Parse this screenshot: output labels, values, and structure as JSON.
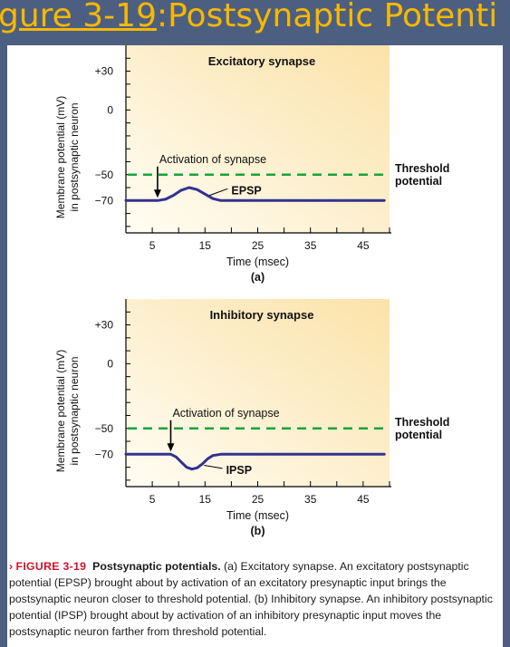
{
  "slide": {
    "title_link": "gure 3-19",
    "title_rest": ":Postsynaptic Potenti"
  },
  "chart_data": [
    {
      "type": "line",
      "title": "Excitatory synapse",
      "panel_label": "(a)",
      "xlabel": "Time (msec)",
      "ylabel_line1": "Membrane potential (mV)",
      "ylabel_line2": "in postsynaptic neuron",
      "x_ticks": [
        "5",
        "15",
        "25",
        "35",
        "45"
      ],
      "y_ticks": [
        "+30",
        "0",
        "−50",
        "−70"
      ],
      "y_tick_values": [
        30,
        0,
        -50,
        -70
      ],
      "xlim": [
        0,
        50
      ],
      "ylim": [
        -95,
        50
      ],
      "threshold": -50,
      "threshold_label_line1": "Threshold",
      "threshold_label_line2": "potential",
      "annotation_activation": "Activation of synapse",
      "activation_x": 6,
      "potential_label": "EPSP",
      "series": [
        {
          "x": [
            0,
            6,
            7.5,
            9,
            10.5,
            12,
            13.5,
            15,
            16.5,
            18,
            20,
            25,
            30,
            35,
            40,
            45,
            49
          ],
          "y": [
            -70,
            -70,
            -69,
            -66,
            -62,
            -60,
            -61.5,
            -65,
            -68.5,
            -70,
            -70,
            -70,
            -70,
            -70,
            -70,
            -70,
            -70
          ]
        }
      ],
      "grid": false
    },
    {
      "type": "line",
      "title": "Inhibitory synapse",
      "panel_label": "(b)",
      "xlabel": "Time (msec)",
      "ylabel_line1": "Membrane potential (mV)",
      "ylabel_line2": "in postsynaptic neuron",
      "x_ticks": [
        "5",
        "15",
        "25",
        "35",
        "45"
      ],
      "y_ticks": [
        "+30",
        "0",
        "−50",
        "−70"
      ],
      "y_tick_values": [
        30,
        0,
        -50,
        -70
      ],
      "xlim": [
        0,
        50
      ],
      "ylim": [
        -95,
        50
      ],
      "threshold": -50,
      "threshold_label_line1": "Threshold",
      "threshold_label_line2": "potential",
      "annotation_activation": "Activation of synapse",
      "activation_x": 8.5,
      "potential_label": "IPSP",
      "series": [
        {
          "x": [
            0,
            8.5,
            9.5,
            10.5,
            11.5,
            12.5,
            13.5,
            14.5,
            15.5,
            16.5,
            18,
            20,
            25,
            30,
            35,
            40,
            45,
            49
          ],
          "y": [
            -70,
            -70,
            -72,
            -76,
            -80,
            -81.5,
            -80.5,
            -77.5,
            -73.5,
            -71,
            -70,
            -70,
            -70,
            -70,
            -70,
            -70,
            -70,
            -70
          ]
        }
      ],
      "grid": false
    }
  ],
  "caption": {
    "figure_label": "FIGURE 3-19",
    "title": "Postsynaptic potentials.",
    "text": " (a) Excitatory synapse. An excitatory postsynaptic potential (EPSP) brought about by activation of an excitatory presynaptic input brings the postsynaptic neuron closer to threshold potential. (b) Inhibitory synapse. An inhibitory postsynaptic potential (IPSP) brought about by activation of an inhibitory presynaptic input moves the postsynaptic neuron farther from threshold potential.",
    "arrow": "›"
  },
  "colors": {
    "trace": "#323290",
    "threshold": "#1aa33c",
    "plot_bg_light": "#fffdf4",
    "plot_bg_dark": "#fbe2a8",
    "accent_red": "#d0122a",
    "title_gold": "#f6b800"
  }
}
